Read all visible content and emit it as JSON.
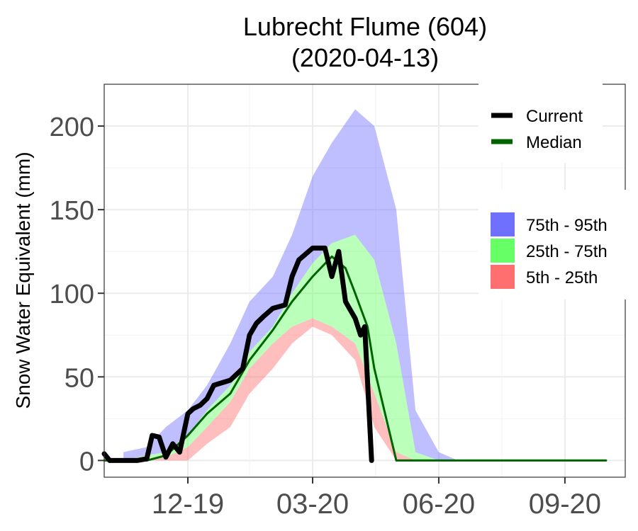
{
  "chart_data": {
    "type": "area",
    "title": "Lubrecht Flume (604)",
    "subtitle": "(2020-04-13)",
    "xlabel": "",
    "ylabel": "Snow Water Equivalent (mm)",
    "x_axis": "date",
    "xlim": [
      "2019-10-01",
      "2020-10-15"
    ],
    "ylim": [
      -10,
      225
    ],
    "x_ticks": [
      {
        "date": "2019-12-01",
        "label": "12-19"
      },
      {
        "date": "2020-03-01",
        "label": "03-20"
      },
      {
        "date": "2020-06-01",
        "label": "06-20"
      },
      {
        "date": "2020-09-01",
        "label": "09-20"
      }
    ],
    "y_ticks": [
      0,
      50,
      100,
      150,
      200
    ],
    "grid": true,
    "legend_position": "right",
    "colors": {
      "current": "#000000",
      "median": "#006400",
      "band_75_95": "#7070ff",
      "band_25_75": "#66ff66",
      "band_5_25": "#ff6f6f"
    },
    "legend_lines": [
      {
        "label": "Current",
        "color": "#000000"
      },
      {
        "label": "Median",
        "color": "#006400"
      }
    ],
    "legend_bands": [
      {
        "label": "75th - 95th",
        "color": "#7070ff"
      },
      {
        "label": "25th - 75th",
        "color": "#66ff66"
      },
      {
        "label": "5th - 25th",
        "color": "#ff6f6f"
      }
    ],
    "bands": {
      "dates": [
        "2019-10-15",
        "2019-11-01",
        "2019-11-15",
        "2019-12-01",
        "2019-12-15",
        "2020-01-01",
        "2020-01-15",
        "2020-02-01",
        "2020-02-15",
        "2020-03-01",
        "2020-03-15",
        "2020-04-01",
        "2020-04-15",
        "2020-05-01",
        "2020-05-15",
        "2020-06-01",
        "2020-06-15"
      ],
      "p95": [
        5,
        8,
        20,
        30,
        45,
        70,
        95,
        110,
        135,
        170,
        190,
        210,
        200,
        150,
        30,
        5,
        0
      ],
      "p75": [
        0,
        3,
        5,
        15,
        30,
        45,
        65,
        80,
        100,
        118,
        130,
        135,
        120,
        70,
        5,
        0,
        0
      ],
      "p25": [
        0,
        0,
        2,
        8,
        20,
        35,
        55,
        70,
        80,
        85,
        80,
        70,
        40,
        5,
        0,
        0,
        0
      ],
      "p5": [
        0,
        0,
        0,
        0,
        10,
        20,
        40,
        55,
        70,
        80,
        75,
        60,
        20,
        0,
        0,
        0,
        0
      ]
    },
    "series": [
      {
        "name": "Current",
        "x": [
          "2019-10-01",
          "2019-10-05",
          "2019-10-15",
          "2019-10-25",
          "2019-11-01",
          "2019-11-05",
          "2019-11-10",
          "2019-11-15",
          "2019-11-20",
          "2019-11-25",
          "2019-12-01",
          "2019-12-05",
          "2019-12-10",
          "2019-12-15",
          "2019-12-20",
          "2020-01-01",
          "2020-01-10",
          "2020-01-15",
          "2020-01-20",
          "2020-01-25",
          "2020-02-01",
          "2020-02-10",
          "2020-02-15",
          "2020-02-20",
          "2020-03-01",
          "2020-03-10",
          "2020-03-15",
          "2020-03-20",
          "2020-03-25",
          "2020-04-01",
          "2020-04-05",
          "2020-04-08",
          "2020-04-13"
        ],
        "y": [
          4,
          0,
          0,
          0,
          1,
          15,
          14,
          2,
          10,
          5,
          28,
          31,
          33,
          37,
          45,
          48,
          55,
          75,
          82,
          86,
          91,
          93,
          110,
          120,
          127,
          127,
          110,
          125,
          95,
          85,
          75,
          80,
          0
        ]
      },
      {
        "name": "Median",
        "x": [
          "2019-10-01",
          "2019-11-01",
          "2019-11-15",
          "2019-12-01",
          "2019-12-15",
          "2020-01-01",
          "2020-01-15",
          "2020-02-01",
          "2020-02-15",
          "2020-03-01",
          "2020-03-15",
          "2020-03-25",
          "2020-04-01",
          "2020-04-10",
          "2020-04-15",
          "2020-05-01",
          "2020-10-01"
        ],
        "y": [
          0,
          0,
          3,
          15,
          28,
          40,
          60,
          78,
          95,
          110,
          122,
          115,
          100,
          80,
          55,
          0,
          0
        ]
      }
    ]
  }
}
